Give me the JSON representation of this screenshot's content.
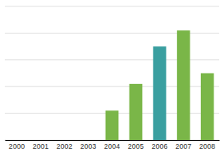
{
  "chart_data": {
    "type": "bar",
    "categories": [
      "2000",
      "2001",
      "2002",
      "2003",
      "2004",
      "2005",
      "2006",
      "2007",
      "2008"
    ],
    "values": [
      0,
      0,
      0,
      0,
      22,
      42,
      70,
      82,
      50
    ],
    "colors": [
      "#7ab648",
      "#7ab648",
      "#7ab648",
      "#7ab648",
      "#7ab648",
      "#7ab648",
      "#3a9fa0",
      "#7ab648",
      "#7ab648"
    ],
    "ylim": [
      0,
      100
    ],
    "yticks": [
      0,
      20,
      40,
      60,
      80,
      100
    ],
    "grid": true,
    "tick_labels": "x"
  }
}
